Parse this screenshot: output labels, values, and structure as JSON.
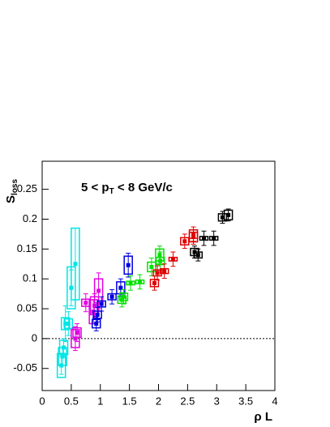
{
  "chart_data": {
    "type": "scatter",
    "annotation": {
      "pre": "5 < p",
      "sub": "T",
      "post": " < 8 GeV/c"
    },
    "ylabel": {
      "main": "S",
      "sub": "loss"
    },
    "xlabel": "ρ L",
    "xlim": [
      0,
      4
    ],
    "xticks": [
      0,
      0.5,
      1,
      1.5,
      2,
      2.5,
      3,
      3.5,
      4
    ],
    "ylim": [
      -0.087,
      0.297
    ],
    "yticks": [
      -0.05,
      0,
      0.05,
      0.1,
      0.15,
      0.2,
      0.25
    ],
    "series": [
      {
        "color": "#00e5e5",
        "x": [
          0.33,
          0.35,
          0.37,
          0.4,
          0.45,
          0.5,
          0.57
        ],
        "values": [
          -0.045,
          -0.03,
          -0.015,
          0.025,
          0.025,
          0.085,
          0.125
        ],
        "errors": [
          0.015,
          0.015,
          0.015,
          0.03,
          0.02,
          0.03,
          0.06
        ],
        "sys": [
          0.02,
          0.015,
          0.012,
          0.01,
          0.008,
          0.035,
          0.06
        ]
      },
      {
        "color": "#e000e0",
        "x": [
          0.57,
          0.6,
          0.75,
          0.88,
          0.9,
          0.97
        ],
        "values": [
          0,
          0.01,
          0.06,
          0.045,
          0.055,
          0.08
        ],
        "errors": [
          0.02,
          0.015,
          0.015,
          0.02,
          0.02,
          0.03
        ],
        "sys": [
          0.015,
          0.008,
          0.006,
          0.02,
          0.015,
          0.02
        ]
      },
      {
        "color": "#0000e0",
        "x": [
          0.93,
          0.95,
          1.02,
          1.2,
          1.35,
          1.48
        ],
        "values": [
          0.025,
          0.04,
          0.058,
          0.07,
          0.085,
          0.123
        ],
        "errors": [
          0.012,
          0.012,
          0.012,
          0.012,
          0.015,
          0.02
        ],
        "sys": [
          0.007,
          0.006,
          0.005,
          0.005,
          0.01,
          0.015
        ]
      },
      {
        "color": "#00e000",
        "x": [
          1.37,
          1.4,
          1.52,
          1.68,
          1.88,
          2.02,
          2.03
        ],
        "values": [
          0.065,
          0.07,
          0.093,
          0.095,
          0.12,
          0.14,
          0.13
        ],
        "errors": [
          0.012,
          0.012,
          0.012,
          0.012,
          0.015,
          0.015,
          0.015
        ],
        "sys": [
          0.006,
          0.006,
          0.003,
          0.003,
          0.008,
          0.01,
          0.006
        ]
      },
      {
        "color": "#e00000",
        "x": [
          1.93,
          1.98,
          2.1,
          2.25,
          2.45,
          2.6,
          2.6
        ],
        "values": [
          0.093,
          0.11,
          0.113,
          0.133,
          0.163,
          0.17,
          0.175
        ],
        "errors": [
          0.012,
          0.012,
          0.012,
          0.012,
          0.012,
          0.012,
          0.012
        ],
        "sys": [
          0.006,
          0.005,
          0.004,
          0.003,
          0.006,
          0.008,
          0.007
        ]
      },
      {
        "color": "#000000",
        "x": [
          2.62,
          2.68,
          2.78,
          2.95,
          3.1,
          3.2
        ],
        "values": [
          0.145,
          0.14,
          0.168,
          0.168,
          0.203,
          0.207
        ],
        "errors": [
          0.01,
          0.01,
          0.012,
          0.012,
          0.01,
          0.01
        ],
        "sys": [
          0.006,
          0.005,
          0.003,
          0.003,
          0.006,
          0.008
        ]
      }
    ]
  }
}
